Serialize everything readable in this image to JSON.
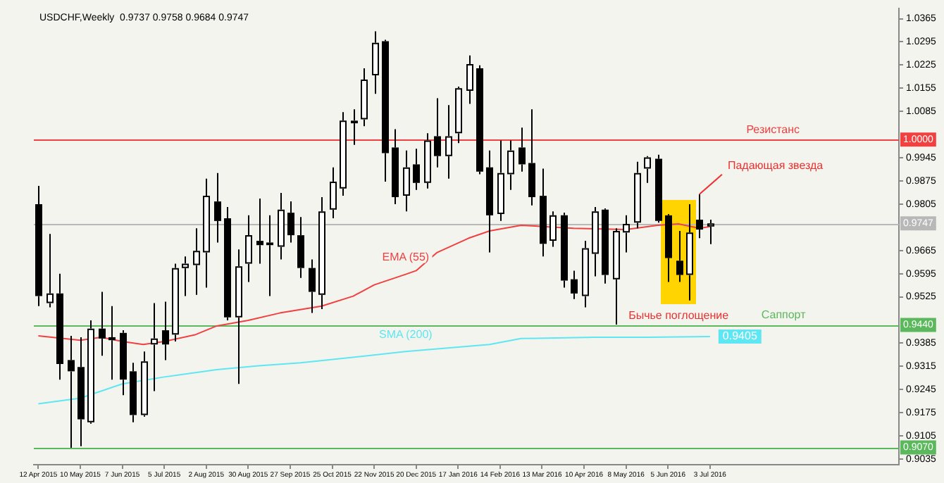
{
  "chart_data": {
    "type": "candlestick",
    "title": "USDCHF,Weekly  0.9737 0.9758 0.9684 0.9747",
    "x": [
      "2015-04-12",
      "2015-04-19",
      "2015-04-26",
      "2015-05-03",
      "2015-05-10",
      "2015-05-17",
      "2015-05-24",
      "2015-05-31",
      "2015-06-07",
      "2015-06-14",
      "2015-06-21",
      "2015-06-28",
      "2015-07-05",
      "2015-07-12",
      "2015-07-19",
      "2015-07-26",
      "2015-08-02",
      "2015-08-09",
      "2015-08-16",
      "2015-08-23",
      "2015-08-30",
      "2015-09-06",
      "2015-09-13",
      "2015-09-20",
      "2015-09-27",
      "2015-10-04",
      "2015-10-11",
      "2015-10-18",
      "2015-10-25",
      "2015-11-01",
      "2015-11-08",
      "2015-11-15",
      "2015-11-22",
      "2015-11-29",
      "2015-12-06",
      "2015-12-13",
      "2015-12-20",
      "2015-12-27",
      "2016-01-03",
      "2016-01-10",
      "2016-01-17",
      "2016-01-24",
      "2016-01-31",
      "2016-02-07",
      "2016-02-14",
      "2016-02-21",
      "2016-02-28",
      "2016-03-06",
      "2016-03-13",
      "2016-03-20",
      "2016-03-27",
      "2016-04-03",
      "2016-04-10",
      "2016-04-17",
      "2016-04-24",
      "2016-05-01",
      "2016-05-08",
      "2016-05-15",
      "2016-05-22",
      "2016-05-29",
      "2016-06-05",
      "2016-06-12",
      "2016-06-19",
      "2016-06-26",
      "2016-07-03"
    ],
    "ohlc": [
      [
        0.9805,
        0.986,
        0.9497,
        0.9527
      ],
      [
        0.9506,
        0.9715,
        0.9493,
        0.9535
      ],
      [
        0.9535,
        0.9595,
        0.9275,
        0.9322
      ],
      [
        0.9334,
        0.9407,
        0.9069,
        0.93
      ],
      [
        0.9313,
        0.9403,
        0.9074,
        0.9155
      ],
      [
        0.9146,
        0.9454,
        0.9142,
        0.9429
      ],
      [
        0.9429,
        0.954,
        0.9347,
        0.9399
      ],
      [
        0.9403,
        0.9497,
        0.9275,
        0.9394
      ],
      [
        0.9416,
        0.9424,
        0.9228,
        0.9275
      ],
      [
        0.93,
        0.9326,
        0.9146,
        0.9168
      ],
      [
        0.9168,
        0.936,
        0.9163,
        0.933
      ],
      [
        0.9381,
        0.9506,
        0.924,
        0.9399
      ],
      [
        0.9424,
        0.951,
        0.9334,
        0.9381
      ],
      [
        0.9411,
        0.9625,
        0.939,
        0.9612
      ],
      [
        0.9612,
        0.9647,
        0.9527,
        0.9625
      ],
      [
        0.9621,
        0.9732,
        0.9531,
        0.9664
      ],
      [
        0.9659,
        0.9882,
        0.9553,
        0.983
      ],
      [
        0.9813,
        0.9899,
        0.9689,
        0.9754
      ],
      [
        0.9762,
        0.9796,
        0.9454,
        0.9463
      ],
      [
        0.9463,
        0.9668,
        0.9262,
        0.9617
      ],
      [
        0.9625,
        0.9771,
        0.957,
        0.9711
      ],
      [
        0.9694,
        0.9822,
        0.9625,
        0.9681
      ],
      [
        0.9689,
        0.9771,
        0.9527,
        0.9681
      ],
      [
        0.9676,
        0.9839,
        0.9638,
        0.9788
      ],
      [
        0.9779,
        0.9813,
        0.9689,
        0.9711
      ],
      [
        0.9711,
        0.9766,
        0.9582,
        0.9612
      ],
      [
        0.9612,
        0.9638,
        0.9476,
        0.954
      ],
      [
        0.9531,
        0.9826,
        0.9488,
        0.9783
      ],
      [
        0.9788,
        0.9916,
        0.9762,
        0.9873
      ],
      [
        0.9852,
        1.0083,
        0.983,
        1.0057
      ],
      [
        1.0049,
        1.0091,
        0.9984,
        1.0057
      ],
      [
        1.0061,
        1.0215,
        1.004,
        1.0181
      ],
      [
        1.0194,
        1.0327,
        1.0138,
        1.0292
      ],
      [
        1.0297,
        1.0301,
        0.9873,
        0.9959
      ],
      [
        0.9976,
        1.0031,
        0.9805,
        0.9826
      ],
      [
        0.983,
        0.9967,
        0.9783,
        0.9916
      ],
      [
        0.9925,
        0.9972,
        0.9848,
        0.9869
      ],
      [
        0.9869,
        1.0019,
        0.9852,
        0.9997
      ],
      [
        1.001,
        1.0125,
        0.9916,
        0.995
      ],
      [
        0.995,
        1.0104,
        0.9882,
        1.001
      ],
      [
        1.0019,
        1.016,
        0.9989,
        1.0155
      ],
      [
        1.0147,
        1.0254,
        1.0108,
        1.0228
      ],
      [
        1.0215,
        1.0224,
        0.9895,
        0.9903
      ],
      [
        0.9916,
        0.9967,
        0.9659,
        0.9771
      ],
      [
        0.9775,
        0.9997,
        0.9754,
        0.9899
      ],
      [
        0.9895,
        0.9997,
        0.9848,
        0.9967
      ],
      [
        0.9976,
        1.0036,
        0.9903,
        0.9925
      ],
      [
        0.9929,
        1.0091,
        0.9801,
        0.9826
      ],
      [
        0.983,
        0.9912,
        0.9647,
        0.9685
      ],
      [
        0.9694,
        0.9783,
        0.9676,
        0.9771
      ],
      [
        0.9771,
        0.9779,
        0.9553,
        0.9574
      ],
      [
        0.9578,
        0.9604,
        0.9518,
        0.9535
      ],
      [
        0.9527,
        0.9694,
        0.9493,
        0.9672
      ],
      [
        0.9655,
        0.9796,
        0.9587,
        0.9783
      ],
      [
        0.9788,
        0.9792,
        0.9565,
        0.9591
      ],
      [
        0.9578,
        0.9732,
        0.9441,
        0.9724
      ],
      [
        0.9719,
        0.9771,
        0.9659,
        0.9745
      ],
      [
        0.9749,
        0.9933,
        0.9732,
        0.9899
      ],
      [
        0.9912,
        0.995,
        0.9869,
        0.9946
      ],
      [
        0.9942,
        0.9954,
        0.9749,
        0.9754
      ],
      [
        0.9771,
        0.9775,
        0.957,
        0.9642
      ],
      [
        0.9634,
        0.9724,
        0.957,
        0.9591
      ],
      [
        0.9591,
        0.9805,
        0.9514,
        0.9719
      ],
      [
        0.9758,
        0.9835,
        0.9702,
        0.9728
      ],
      [
        0.9737,
        0.9758,
        0.9684,
        0.9747
      ]
    ],
    "series": [
      {
        "type": "line",
        "color": "#f04040",
        "x": [
          "2015-04-12",
          "2015-05-10",
          "2015-05-24",
          "2015-06-07",
          "2015-06-21",
          "2015-07-05",
          "2015-07-26",
          "2015-08-09",
          "2015-08-30",
          "2015-09-20",
          "2015-10-18",
          "2015-11-08",
          "2015-11-22",
          "2015-12-13",
          "2015-12-20",
          "2016-01-03",
          "2016-01-24",
          "2016-02-07",
          "2016-02-28",
          "2016-04-03",
          "2016-05-08",
          "2016-05-29",
          "2016-06-12",
          "2016-06-26",
          "2016-07-03"
        ],
        "values": [
          0.9407,
          0.9394,
          0.9403,
          0.939,
          0.9381,
          0.939,
          0.9411,
          0.9437,
          0.9454,
          0.9476,
          0.9497,
          0.9527,
          0.9561,
          0.9593,
          0.9604,
          0.9659,
          0.9702,
          0.9724,
          0.9741,
          0.9732,
          0.9728,
          0.9741,
          0.9745,
          0.9732,
          0.9737
        ]
      },
      {
        "type": "line",
        "color": "#5ee6f2",
        "x": [
          "2015-04-12",
          "2015-05-10",
          "2015-06-07",
          "2015-07-05",
          "2015-08-09",
          "2015-09-06",
          "2015-10-04",
          "2015-11-01",
          "2015-12-13",
          "2016-01-03",
          "2016-02-07",
          "2016-02-28",
          "2016-04-17",
          "2016-05-22",
          "2016-07-03"
        ],
        "values": [
          0.9202,
          0.9219,
          0.9262,
          0.9283,
          0.9305,
          0.9317,
          0.9326,
          0.9339,
          0.936,
          0.9368,
          0.9381,
          0.9399,
          0.9403,
          0.9403,
          0.9405
        ]
      }
    ],
    "xlim": [
      "2015-04-09",
      "2016-11-06"
    ],
    "xticks": [
      {
        "value": "2015-04-12",
        "label": "12 Apr 2015"
      },
      {
        "value": "2015-05-10",
        "label": "10 May 2015"
      },
      {
        "value": "2015-06-07",
        "label": "7 Jun 2015"
      },
      {
        "value": "2015-07-05",
        "label": "5 Jul 2015"
      },
      {
        "value": "2015-08-02",
        "label": "2 Aug 2015"
      },
      {
        "value": "2015-08-30",
        "label": "30 Aug 2015"
      },
      {
        "value": "2015-09-27",
        "label": "27 Sep 2015"
      },
      {
        "value": "2015-10-25",
        "label": "25 Oct 2015"
      },
      {
        "value": "2015-11-22",
        "label": "22 Nov 2015"
      },
      {
        "value": "2015-12-20",
        "label": "20 Dec 2015"
      },
      {
        "value": "2016-01-17",
        "label": "17 Jan 2016"
      },
      {
        "value": "2016-02-14",
        "label": "14 Feb 2016"
      },
      {
        "value": "2016-03-13",
        "label": "13 Mar 2016"
      },
      {
        "value": "2016-04-10",
        "label": "10 Apr 2016"
      },
      {
        "value": "2016-05-08",
        "label": "8 May 2016"
      },
      {
        "value": "2016-06-05",
        "label": "5 Jun 2016"
      },
      {
        "value": "2016-07-03",
        "label": "3 Jul 2016"
      }
    ],
    "ylim": [
      0.9018,
      1.0395
    ],
    "yticks": [
      1.0365,
      1.0295,
      1.0225,
      1.0155,
      1.0085,
      0.9945,
      0.9875,
      0.9805,
      0.9665,
      0.9595,
      0.9525,
      0.9385,
      0.9315,
      0.9245,
      0.9175,
      0.9105,
      0.9035
    ],
    "ref_lines": [
      {
        "axis": "y",
        "value": 1.0,
        "label": "1.0000",
        "color": "#f04040"
      },
      {
        "axis": "y",
        "value": 0.9747,
        "label": "0.9747",
        "color": "#b8b8b8"
      },
      {
        "axis": "y",
        "value": 0.944,
        "label": "0.9440",
        "color": "#5cb85c"
      },
      {
        "axis": "y",
        "value": 0.907,
        "label": "0.9070",
        "color": "#5cb85c"
      }
    ],
    "annotations": [
      {
        "text": "Резистанс",
        "x": "2016-08-14",
        "y": 1.0
      },
      {
        "text": "Саппорт",
        "x": "2016-08-21",
        "y": 0.944
      },
      {
        "text": "Падающая звезда",
        "x": "2016-06-26",
        "y": 0.9835
      },
      {
        "text": "Бычье поглощение",
        "x": "2016-06-19",
        "y": 0.9514
      },
      {
        "text": "EMA (55)",
        "x": "2015-12-13",
        "y": 0.9593
      },
      {
        "text": "SMA (200)",
        "x": "2015-12-13",
        "y": 0.936
      },
      {
        "text": "0.9405",
        "x": "2016-07-03",
        "y": 0.9405
      }
    ]
  }
}
